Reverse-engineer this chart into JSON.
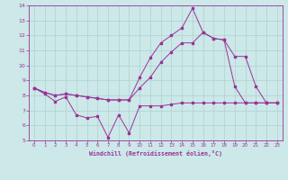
{
  "bg_color": "#cce8e8",
  "line_color": "#993399",
  "grid_color": "#b0d0d0",
  "xlabel": "Windchill (Refroidissement éolien,°C)",
  "xlim_min": -0.5,
  "xlim_max": 23.5,
  "ylim_min": 5,
  "ylim_max": 14,
  "xticks": [
    0,
    1,
    2,
    3,
    4,
    5,
    6,
    7,
    8,
    9,
    10,
    11,
    12,
    13,
    14,
    15,
    16,
    17,
    18,
    19,
    20,
    21,
    22,
    23
  ],
  "yticks": [
    5,
    6,
    7,
    8,
    9,
    10,
    11,
    12,
    13,
    14
  ],
  "line1_x": [
    0,
    1,
    2,
    3,
    4,
    5,
    6,
    7,
    8,
    9,
    10,
    11,
    12,
    13,
    14,
    15,
    16,
    17,
    18,
    19,
    20,
    21,
    22,
    23
  ],
  "line1_y": [
    8.5,
    8.1,
    7.6,
    7.9,
    6.7,
    6.5,
    6.6,
    5.2,
    6.7,
    5.5,
    7.3,
    7.3,
    7.3,
    7.4,
    7.5,
    7.5,
    7.5,
    7.5,
    7.5,
    7.5,
    7.5,
    7.5,
    7.5,
    7.5
  ],
  "line2_x": [
    0,
    1,
    2,
    3,
    4,
    5,
    6,
    7,
    8,
    9,
    10,
    11,
    12,
    13,
    14,
    15,
    16,
    17,
    18,
    19,
    20,
    21,
    22,
    23
  ],
  "line2_y": [
    8.5,
    8.2,
    8.0,
    8.1,
    8.0,
    7.9,
    7.8,
    7.7,
    7.7,
    7.7,
    8.5,
    9.2,
    10.2,
    10.9,
    11.5,
    11.5,
    12.2,
    11.8,
    11.7,
    10.6,
    10.6,
    8.6,
    7.5,
    7.5
  ],
  "line3_x": [
    0,
    1,
    2,
    3,
    4,
    5,
    6,
    7,
    8,
    9,
    10,
    11,
    12,
    13,
    14,
    15,
    16,
    17,
    18,
    19,
    20,
    21,
    22,
    23
  ],
  "line3_y": [
    8.5,
    8.2,
    8.0,
    8.1,
    8.0,
    7.9,
    7.8,
    7.7,
    7.7,
    7.7,
    9.2,
    10.5,
    11.5,
    12.0,
    12.5,
    13.8,
    12.2,
    11.8,
    11.7,
    8.6,
    7.5,
    7.5,
    7.5,
    7.5
  ]
}
